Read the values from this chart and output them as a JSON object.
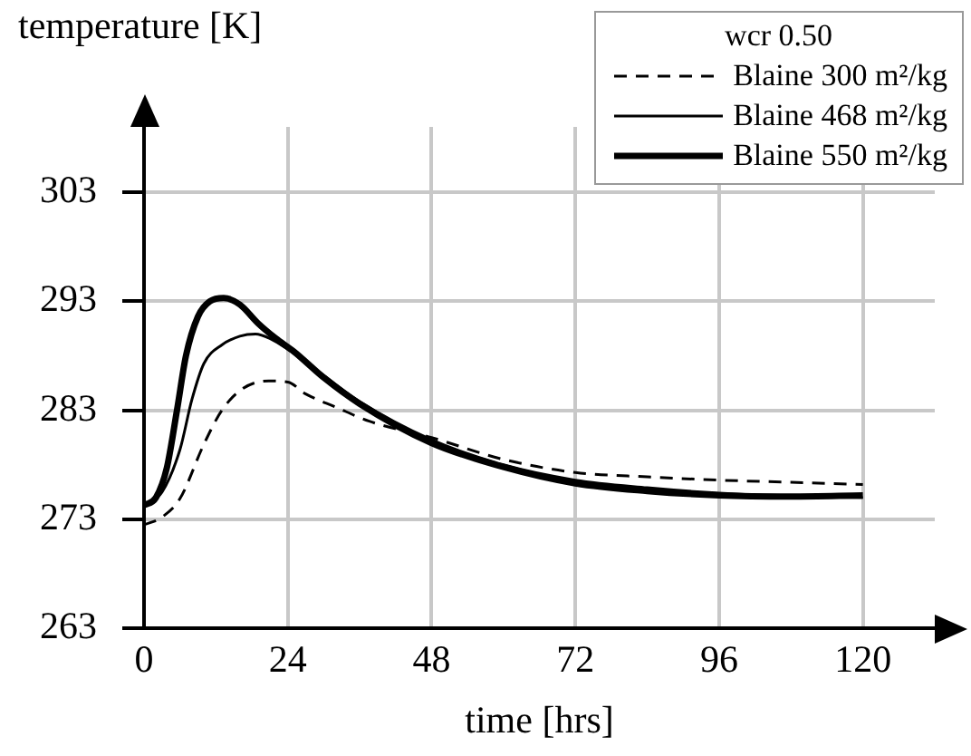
{
  "chart_data": {
    "type": "line",
    "ylabel": "temperature [K]",
    "xlabel": "time [hrs]",
    "legend_title": "wcr 0.50",
    "legend": "top right",
    "grid": true,
    "marker": "none",
    "xlim": [
      0,
      132
    ],
    "xticks": [
      0,
      24,
      48,
      72,
      96,
      120
    ],
    "ylim": [
      263,
      309
    ],
    "yticks": [
      263,
      273,
      283,
      293,
      303
    ],
    "series": [
      {
        "name": "Blaine 300 m²/kg",
        "color": "#000000",
        "line_style": "dashed",
        "x": [
          0,
          3,
          6,
          10,
          13,
          16.5,
          20.8,
          24,
          27,
          32,
          37.6,
          48,
          60,
          72,
          84,
          96,
          108,
          120
        ],
        "values": [
          272.5,
          273.2,
          274.9,
          279.9,
          283,
          285,
          285.7,
          285.6,
          284.5,
          283.3,
          282,
          280.5,
          278.5,
          277.3,
          276.9,
          276.6,
          276.4,
          276.2
        ]
      },
      {
        "name": "Blaine 468 m²/kg",
        "color": "#000000",
        "line_style": "solid",
        "x": [
          0,
          3,
          6,
          8,
          10,
          13,
          16,
          18.6,
          21,
          24,
          30,
          36,
          48,
          60,
          72,
          84,
          96,
          108,
          120
        ],
        "values": [
          274.3,
          275.5,
          279.4,
          284,
          287.3,
          289,
          289.8,
          290,
          289.6,
          288.6,
          286.2,
          283.8,
          280.3,
          278,
          276.6,
          275.9,
          275.4,
          275.1,
          275
        ]
      },
      {
        "name": "Blaine 550 m²/kg",
        "color": "#000000",
        "line_style": "solid",
        "x": [
          0,
          2,
          3.8,
          5.5,
          7,
          9,
          11,
          13.3,
          16,
          19,
          22,
          25,
          30,
          36,
          48,
          60,
          72,
          84,
          96,
          108,
          120
        ],
        "values": [
          274.3,
          275,
          277.7,
          283,
          288,
          291.6,
          293,
          293.3,
          292.7,
          291,
          289.6,
          288.4,
          286,
          283.6,
          280,
          277.8,
          276.3,
          275.6,
          275.2,
          275.1,
          275.2
        ]
      }
    ]
  }
}
